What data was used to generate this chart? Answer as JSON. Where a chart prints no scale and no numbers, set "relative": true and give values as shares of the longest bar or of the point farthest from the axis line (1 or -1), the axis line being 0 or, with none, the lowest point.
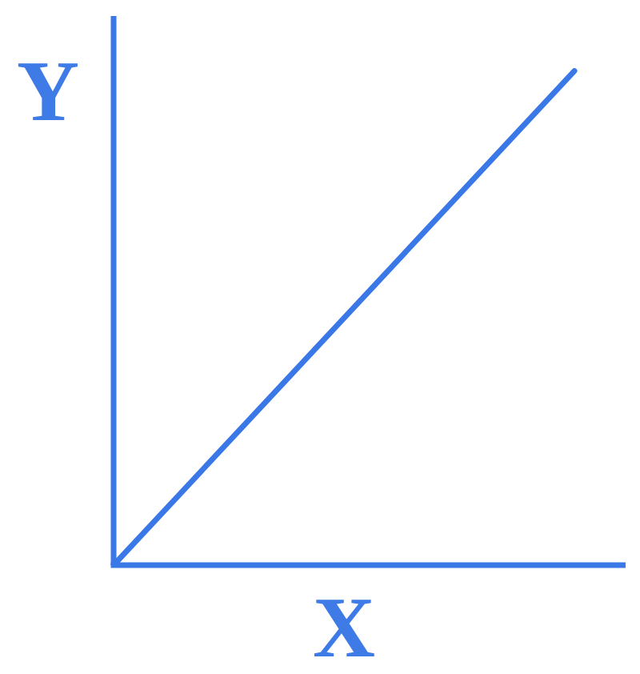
{
  "chart_data": {
    "type": "line",
    "xlabel": "X",
    "ylabel": "Y",
    "categories": [
      null,
      null
    ],
    "relative": true,
    "series": [
      {
        "color": "#3a78e8",
        "values": [
          0,
          1
        ]
      }
    ],
    "marker": "none",
    "line_style": "solid"
  }
}
